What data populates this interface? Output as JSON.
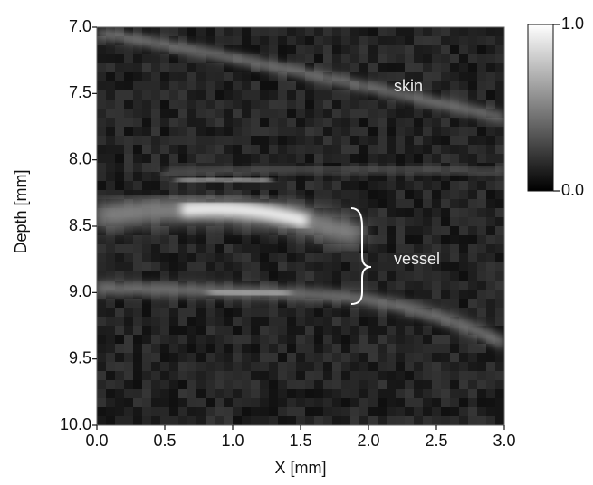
{
  "chart_data": {
    "type": "heatmap",
    "xlabel": "X [mm]",
    "ylabel": "Depth [mm]",
    "xlim": [
      0,
      3
    ],
    "xticks": [
      {
        "value": 0,
        "label": "0.0"
      },
      0.5,
      {
        "value": 1,
        "label": "1.0"
      },
      1.5,
      {
        "value": 2,
        "label": "2.0"
      },
      2.5,
      {
        "value": 3,
        "label": "3.0"
      }
    ],
    "ylim": [
      7,
      10
    ],
    "yticks": [
      {
        "value": 7,
        "label": "7.0"
      },
      7.5,
      {
        "value": 8,
        "label": "8.0"
      },
      8.5,
      {
        "value": 9,
        "label": "9.0"
      },
      9.5,
      {
        "value": 10,
        "label": "10.0"
      }
    ],
    "y_inverted": true,
    "colormap": "gray",
    "clim": [
      0,
      1
    ],
    "cticks": [
      {
        "value": 0,
        "label": "0.0"
      },
      {
        "value": 1,
        "label": "1.0"
      }
    ],
    "annotations": [
      "skin",
      "vessel"
    ]
  }
}
